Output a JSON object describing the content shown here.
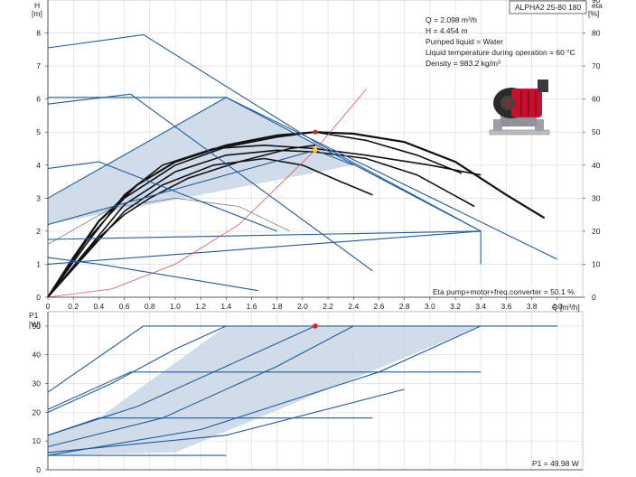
{
  "chart_data": [
    {
      "type": "line",
      "title": "ALPHA2 25-80 180",
      "xlabel": "Q [m³/h]",
      "ylabel": "H [m]",
      "ylabel_unit": "[m]",
      "ylabel_name": "H",
      "y2label_name": "eta",
      "y2label_unit": "[%]",
      "xlim": [
        0,
        4.2
      ],
      "ylim": [
        0,
        9
      ],
      "y2lim": [
        0,
        90
      ],
      "grid": true,
      "x_ticks": [
        "0",
        "0.2",
        "0.4",
        "0.6",
        "0.8",
        "1.0",
        "1.2",
        "1.4",
        "1.6",
        "1.8",
        "2.0",
        "2.2",
        "2.4",
        "2.6",
        "2.8",
        "3.0",
        "3.2",
        "3.4",
        "3.6",
        "3.8",
        "4.0"
      ],
      "y_ticks": [
        "0",
        "1",
        "2",
        "3",
        "4",
        "5",
        "6",
        "7",
        "8"
      ],
      "y2_ticks": [
        "0",
        "10",
        "20",
        "30",
        "40",
        "50",
        "60",
        "70",
        "80",
        "90"
      ],
      "info_lines": [
        "Q = 2.098 m³/h",
        "H = 4.454 m",
        "Pumped liquid = Water",
        "Liquid temperature during operation = 60 °C",
        "Density = 983.2 kg/m³"
      ],
      "efficiency_label": "Eta pump+motor+freq.converter = 50.1 %",
      "operating_point": {
        "x": 2.098,
        "y": 4.454
      },
      "max_point": {
        "x": 2.1,
        "y": 5.0
      },
      "operating_range_polygon": [
        [
          0,
          1.0
        ],
        [
          0,
          3.0
        ],
        [
          1.4,
          6.05
        ],
        [
          2.1,
          4.65
        ],
        [
          3.4,
          2.0
        ],
        [
          2.4,
          4.0
        ],
        [
          0,
          2.2
        ]
      ],
      "series": [
        {
          "role": "H-curve",
          "color": "#111111",
          "x": [
            0,
            0.2,
            0.4,
            0.7,
            1.0,
            1.4,
            1.8,
            2.1,
            2.4,
            2.8,
            3.2,
            3.6,
            3.9
          ],
          "y": [
            0,
            1.2,
            2.3,
            3.4,
            4.1,
            4.6,
            4.9,
            5.0,
            4.95,
            4.7,
            4.1,
            3.1,
            2.4
          ]
        },
        {
          "role": "H-curve",
          "color": "#111111",
          "x": [
            0,
            0.3,
            0.6,
            1.0,
            1.4,
            1.8,
            2.1,
            2.5,
            2.9,
            3.25
          ],
          "y": [
            0,
            1.7,
            3.0,
            4.0,
            4.55,
            4.85,
            5.0,
            4.75,
            4.3,
            3.75
          ]
        },
        {
          "role": "H-curve",
          "color": "#111111",
          "x": [
            0,
            0.3,
            0.6,
            1.0,
            1.4,
            1.8,
            2.1,
            2.5,
            2.9,
            3.35
          ],
          "y": [
            0,
            1.4,
            2.8,
            3.8,
            4.3,
            4.45,
            4.4,
            4.2,
            3.7,
            2.75
          ]
        },
        {
          "role": "H-curve",
          "color": "#111111",
          "x": [
            0,
            0.3,
            0.6,
            0.9,
            1.3,
            1.7,
            2.1,
            2.5,
            3.0,
            3.4
          ],
          "y": [
            0,
            1.6,
            3.1,
            4.0,
            4.5,
            4.6,
            4.5,
            4.3,
            4.0,
            3.7
          ]
        },
        {
          "role": "H-curve",
          "color": "#111111",
          "x": [
            0,
            0.3,
            0.6,
            0.9,
            1.3,
            1.7,
            2.0,
            2.3,
            2.55
          ],
          "y": [
            0,
            1.3,
            2.6,
            3.4,
            4.0,
            4.2,
            4.0,
            3.5,
            3.1
          ]
        },
        {
          "role": "H-curve",
          "color": "#111111",
          "x": [
            0,
            0.2,
            0.4,
            0.6,
            0.8,
            1.1,
            1.5,
            1.9,
            2.1
          ],
          "y": [
            0,
            0.9,
            1.8,
            2.5,
            3.0,
            3.6,
            4.1,
            4.5,
            4.6
          ]
        },
        {
          "role": "const-curve",
          "color": "#1f5c9e",
          "x": [
            0,
            0.75,
            2.1,
            3.4
          ],
          "y": [
            7.55,
            7.95,
            4.7,
            2.0
          ]
        },
        {
          "role": "const-curve",
          "color": "#1f5c9e",
          "x": [
            0,
            0.65,
            2.55
          ],
          "y": [
            5.85,
            6.15,
            0.8
          ]
        },
        {
          "role": "const-curve",
          "color": "#1f5c9e",
          "x": [
            0,
            0.4,
            1.8
          ],
          "y": [
            3.9,
            4.1,
            2.0
          ]
        },
        {
          "role": "const-curve",
          "color": "#1f5c9e",
          "x": [
            0,
            1.4,
            3.4,
            3.4
          ],
          "y": [
            6.05,
            6.05,
            2.0,
            1.0
          ]
        },
        {
          "role": "prop-curve",
          "color": "#1f5c9e",
          "x": [
            0,
            1.4,
            4.0
          ],
          "y": [
            3.0,
            6.05,
            1.15
          ]
        },
        {
          "role": "prop-curve",
          "color": "#1f5c9e",
          "x": [
            0,
            2.1,
            2.4
          ],
          "y": [
            2.2,
            4.45,
            4.0
          ]
        },
        {
          "role": "prop-curve",
          "color": "#1f5c9e",
          "x": [
            0,
            3.4
          ],
          "y": [
            1.0,
            2.0
          ]
        },
        {
          "role": "prop-curve",
          "color": "#1f5c9e",
          "x": [
            0,
            3.4
          ],
          "y": [
            1.75,
            2.0
          ]
        },
        {
          "role": "eta-curve",
          "color": "#1f5c9e",
          "x": [
            0,
            0.4,
            1.65
          ],
          "y": [
            1.2,
            1.0,
            0.2
          ]
        },
        {
          "role": "eta-curve",
          "color": "#555555",
          "x": [
            0,
            0.5,
            1.0,
            1.5,
            1.9
          ],
          "y": [
            1.6,
            2.7,
            3.0,
            2.75,
            2.0
          ]
        },
        {
          "role": "system-curve",
          "color": "#e05555",
          "x": [
            0,
            0.5,
            1.0,
            1.5,
            2.098,
            2.5
          ],
          "y": [
            0,
            0.25,
            1.0,
            2.2,
            4.454,
            6.3
          ]
        }
      ]
    },
    {
      "type": "line",
      "xlabel": "",
      "ylabel_name": "P1",
      "ylabel_unit": "[W]",
      "xlim": [
        0,
        4.2
      ],
      "ylim": [
        0,
        55
      ],
      "grid": true,
      "y_ticks": [
        "0",
        "10",
        "20",
        "30",
        "40",
        "50"
      ],
      "power_label": "P1 = 49.98 W",
      "operating_point": {
        "x": 2.1,
        "y": 50
      },
      "operating_range_polygon": [
        [
          0,
          12
        ],
        [
          0.4,
          18
        ],
        [
          1.4,
          50
        ],
        [
          3.4,
          50
        ],
        [
          1.0,
          6
        ],
        [
          0,
          5
        ]
      ],
      "series": [
        {
          "role": "power-curve",
          "color": "#1f5c9e",
          "x": [
            0,
            0.75,
            4.0
          ],
          "y": [
            27,
            50,
            50
          ]
        },
        {
          "role": "power-curve",
          "color": "#1f5c9e",
          "x": [
            0,
            0.65,
            3.4
          ],
          "y": [
            21,
            34,
            34
          ]
        },
        {
          "role": "power-curve",
          "color": "#1f5c9e",
          "x": [
            0,
            0.4,
            0.65,
            2.55
          ],
          "y": [
            12,
            18,
            18,
            18
          ]
        },
        {
          "role": "power-curve",
          "color": "#1f5c9e",
          "x": [
            0,
            0.5,
            1.0,
            1.4
          ],
          "y": [
            20,
            30,
            42,
            50
          ]
        },
        {
          "role": "power-curve",
          "color": "#1f5c9e",
          "x": [
            0,
            0.7,
            1.4,
            2.1
          ],
          "y": [
            12,
            22,
            36,
            50
          ]
        },
        {
          "role": "power-curve",
          "color": "#1f5c9e",
          "x": [
            0,
            0.9,
            1.8,
            2.4
          ],
          "y": [
            8,
            18,
            36,
            50
          ]
        },
        {
          "role": "power-curve",
          "color": "#1f5c9e",
          "x": [
            0,
            1.2,
            2.6,
            3.4
          ],
          "y": [
            5,
            14,
            34,
            50
          ]
        },
        {
          "role": "power-curve",
          "color": "#1f5c9e",
          "x": [
            0,
            1.4,
            2.8
          ],
          "y": [
            6,
            12,
            28
          ]
        },
        {
          "role": "power-curve",
          "color": "#1f5c9e",
          "x": [
            0,
            1.4
          ],
          "y": [
            5,
            5
          ]
        }
      ]
    }
  ]
}
